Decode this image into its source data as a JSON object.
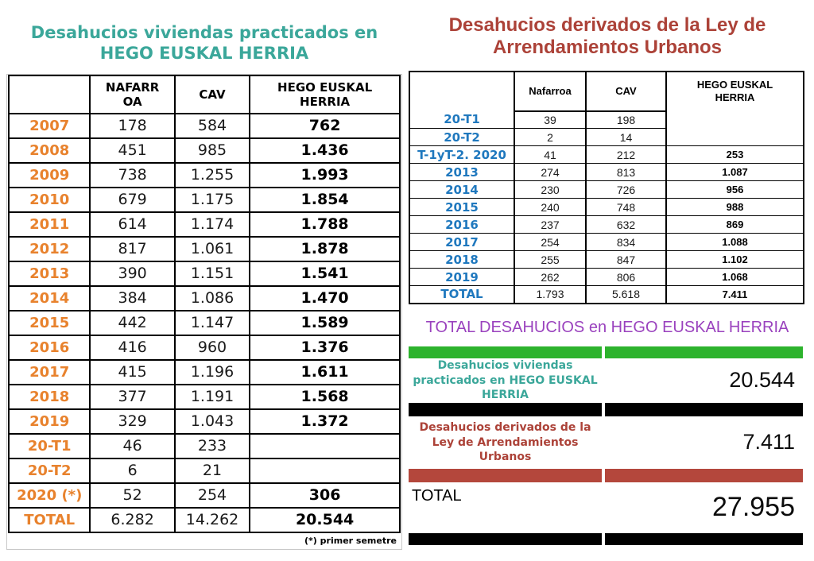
{
  "left": {
    "title": "Desahucios viviendas practicados en HEGO EUSKAL HERRIA",
    "columns": [
      "",
      "NAFARROA",
      "CAV",
      "HEGO EUSKAL HERRIA"
    ],
    "rows": [
      {
        "label": "2007",
        "nafarroa": "178",
        "cav": "584",
        "hego": "762"
      },
      {
        "label": "2008",
        "nafarroa": "451",
        "cav": "985",
        "hego": "1.436"
      },
      {
        "label": "2009",
        "nafarroa": "738",
        "cav": "1.255",
        "hego": "1.993"
      },
      {
        "label": "2010",
        "nafarroa": "679",
        "cav": "1.175",
        "hego": "1.854"
      },
      {
        "label": "2011",
        "nafarroa": "614",
        "cav": "1.174",
        "hego": "1.788"
      },
      {
        "label": "2012",
        "nafarroa": "817",
        "cav": "1.061",
        "hego": "1.878"
      },
      {
        "label": "2013",
        "nafarroa": "390",
        "cav": "1.151",
        "hego": "1.541"
      },
      {
        "label": "2014",
        "nafarroa": "384",
        "cav": "1.086",
        "hego": "1.470"
      },
      {
        "label": "2015",
        "nafarroa": "442",
        "cav": "1.147",
        "hego": "1.589"
      },
      {
        "label": "2016",
        "nafarroa": "416",
        "cav": "960",
        "hego": "1.376"
      },
      {
        "label": "2017",
        "nafarroa": "415",
        "cav": "1.196",
        "hego": "1.611"
      },
      {
        "label": "2018",
        "nafarroa": "377",
        "cav": "1.191",
        "hego": "1.568"
      },
      {
        "label": "2019",
        "nafarroa": "329",
        "cav": "1.043",
        "hego": "1.372"
      },
      {
        "label": "20-T1",
        "nafarroa": "46",
        "cav": "233",
        "hego": ""
      },
      {
        "label": "20-T2",
        "nafarroa": "6",
        "cav": "21",
        "hego": ""
      },
      {
        "label": "2020 (*)",
        "nafarroa": "52",
        "cav": "254",
        "hego": "306"
      },
      {
        "label": "TOTAL",
        "nafarroa": "6.282",
        "cav": "14.262",
        "hego": "20.544"
      }
    ],
    "footnote": "(*) primer semetre"
  },
  "right": {
    "title": "Desahucios derivados de la Ley de Arrendamientos Urbanos",
    "columns": [
      "",
      "Nafarroa",
      "CAV",
      "HEGO EUSKAL HERRIA"
    ],
    "rows": [
      {
        "label": "20-T1",
        "nafarroa": "39",
        "cav": "198",
        "hego": ""
      },
      {
        "label": "20-T2",
        "nafarroa": "2",
        "cav": "14",
        "hego": ""
      },
      {
        "label": "T-1yT-2. 2020",
        "nafarroa": "41",
        "cav": "212",
        "hego": "253"
      },
      {
        "label": "2013",
        "nafarroa": "274",
        "cav": "813",
        "hego": "1.087"
      },
      {
        "label": "2014",
        "nafarroa": "230",
        "cav": "726",
        "hego": "956"
      },
      {
        "label": "2015",
        "nafarroa": "240",
        "cav": "748",
        "hego": "988"
      },
      {
        "label": "2016",
        "nafarroa": "237",
        "cav": "632",
        "hego": "869"
      },
      {
        "label": "2017",
        "nafarroa": "254",
        "cav": "834",
        "hego": "1.088"
      },
      {
        "label": "2018",
        "nafarroa": "255",
        "cav": "847",
        "hego": "1.102"
      },
      {
        "label": "2019",
        "nafarroa": "262",
        "cav": "806",
        "hego": "1.068"
      },
      {
        "label": "TOTAL",
        "nafarroa": "1.793",
        "cav": "5.618",
        "hego": "7.411"
      }
    ]
  },
  "summary": {
    "title": "TOTAL DESAHUCIOS en HEGO EUSKAL HERRIA",
    "rows": [
      {
        "label": "Desahucios viviendas practicados en HEGO EUSKAL HERRIA",
        "value": "20.544"
      },
      {
        "label": "Desahucios derivados de la Ley de Arrendamientos Urbanos",
        "value": "7.411"
      },
      {
        "label": "TOTAL",
        "value": "27.955"
      }
    ]
  },
  "colors": {
    "teal_title": "#3BA79A",
    "orange_row_label": "#E8822D",
    "blue_row_label": "#1F78BE",
    "dark_red_title": "#AC4238",
    "purple_title": "#9A42BE",
    "green_bar": "#2DB32D",
    "red_bar": "#B4473C",
    "black_bar": "#000000"
  }
}
